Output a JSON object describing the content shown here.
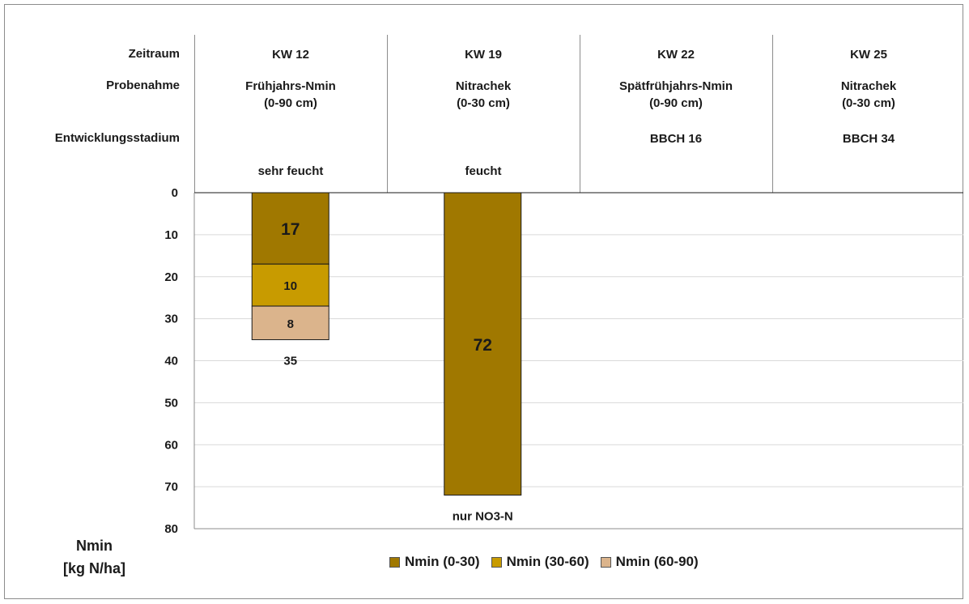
{
  "header": {
    "row_labels": [
      "Zeitraum",
      "Probenahme",
      "Entwicklungsstadium"
    ],
    "columns": [
      {
        "kw": "KW 12",
        "probe": "Frühjahrs-Nmin\n(0-90 cm)",
        "stadium": "",
        "zustand": "sehr feucht"
      },
      {
        "kw": "KW 19",
        "probe": "Nitrachek\n(0-30 cm)",
        "stadium": "",
        "zustand": "feucht"
      },
      {
        "kw": "KW 22",
        "probe": "Spätfrühjahrs-Nmin\n(0-90 cm)",
        "stadium": "BBCH 16",
        "zustand": ""
      },
      {
        "kw": "KW 25",
        "probe": "Nitrachek\n(0-30 cm)",
        "stadium": "BBCH 34",
        "zustand": ""
      }
    ]
  },
  "chart_data": {
    "type": "bar",
    "stacked": true,
    "orientation": "downward",
    "categories": [
      "KW 12",
      "KW 19",
      "KW 22",
      "KW 25"
    ],
    "series": [
      {
        "name": "Nmin (0-30)",
        "color": "#a07800",
        "values": [
          17,
          72,
          null,
          null
        ]
      },
      {
        "name": "Nmin (30-60)",
        "color": "#c89b00",
        "values": [
          10,
          null,
          null,
          null
        ]
      },
      {
        "name": "Nmin (60-90)",
        "color": "#dbb48c",
        "values": [
          8,
          null,
          null,
          null
        ]
      }
    ],
    "totals": [
      "35",
      "nur NO3-N",
      "",
      ""
    ],
    "ylabel": "Nmin\n[kg N/ha]",
    "ylim": [
      0,
      80
    ],
    "yticks": [
      0,
      10,
      20,
      30,
      40,
      50,
      60,
      70,
      80
    ],
    "grid": true,
    "legend": "bottom"
  }
}
